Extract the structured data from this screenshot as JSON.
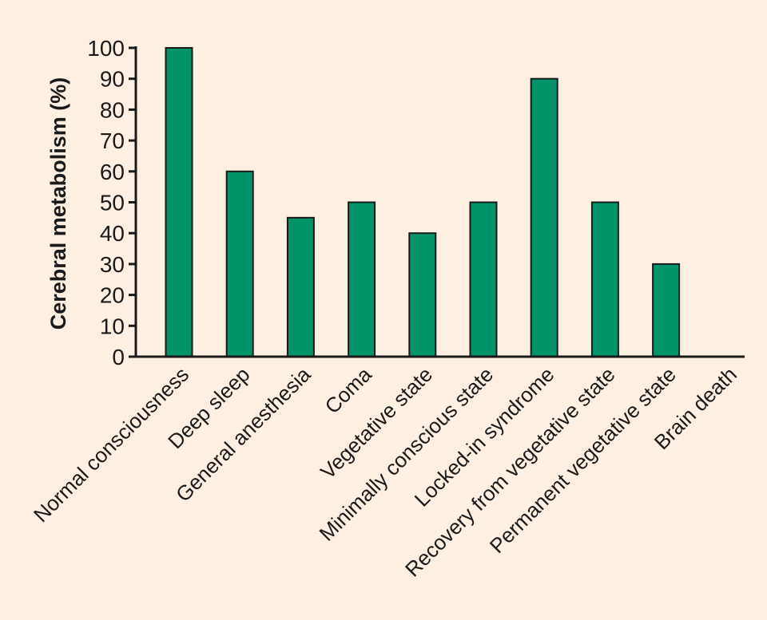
{
  "colors": {
    "background": "#fdf0e3",
    "bar_fill": "#009468",
    "bar_stroke": "#1a1a1a",
    "axis": "#1a1a1a",
    "text": "#1a1a1a"
  },
  "chart_data": {
    "type": "bar",
    "title": "",
    "xlabel": "",
    "ylabel": "Cerebral metabolism (%)",
    "ylim": [
      0,
      100
    ],
    "yticks": [
      0,
      10,
      20,
      30,
      40,
      50,
      60,
      70,
      80,
      90,
      100
    ],
    "grid": false,
    "legend": "none",
    "categories": [
      "Normal consciousness",
      "Deep sleep",
      "General anesthesia",
      "Coma",
      "Vegetative state",
      "Minimally conscious state",
      "Locked-in syndrome",
      "Recovery from vegetative state",
      "Permanent vegetative state",
      "Brain death"
    ],
    "values": [
      100,
      60,
      45,
      50,
      40,
      50,
      90,
      50,
      30,
      0
    ]
  }
}
